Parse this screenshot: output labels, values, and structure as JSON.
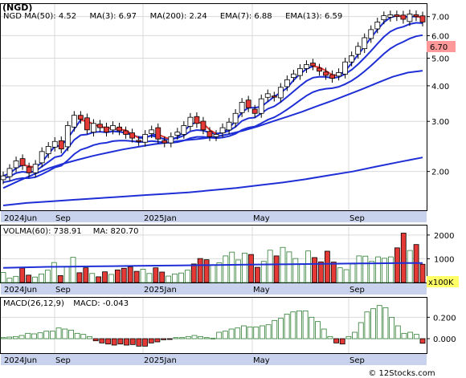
{
  "title": "(NGD)",
  "watermark": "© 12Stocks.com",
  "colors": {
    "bg": "#ffffff",
    "axis_band": "#c8d2ec",
    "grid": "#d9d9d9",
    "ma_line": "#1f2fd6",
    "up": "#2e7d32",
    "down": "#e53935",
    "last_price_box": "#ff9999"
  },
  "price_panel": {
    "legend": [
      {
        "label": "NGD",
        "value": ""
      },
      {
        "label": "MA(50)",
        "value": "4.52"
      },
      {
        "label": "MA(3)",
        "value": "6.97"
      },
      {
        "label": "MA(200)",
        "value": "2.24"
      },
      {
        "label": "EMA(7)",
        "value": "6.88"
      },
      {
        "label": "EMA(13)",
        "value": "6.59"
      }
    ],
    "last_price": "6.70",
    "y_ticks": [
      "7.00",
      "6.00",
      "5.00",
      "4.00",
      "3.00",
      "2.00"
    ],
    "x_ticks": [
      "2024Jun",
      "Sep",
      "2025Jan",
      "May",
      "Sep"
    ]
  },
  "volume_panel": {
    "legend": [
      {
        "label": "VOLMA(60)",
        "value": "738.91"
      },
      {
        "label": "MA",
        "value": "820.70"
      }
    ],
    "y_ticks": [
      "2000",
      "1000"
    ],
    "unit_label": "x100K",
    "x_ticks": [
      "2024Jun",
      "Sep",
      "2025Jan",
      "May",
      "Sep"
    ]
  },
  "macd_panel": {
    "legend": [
      {
        "label": "MACD(26,12,9)",
        "value": ""
      },
      {
        "label": "MACD",
        "value": "-0.043"
      }
    ],
    "y_ticks": [
      "0.200",
      "0.000"
    ],
    "x_ticks": [
      "2024Jun",
      "Sep",
      "2025Jan",
      "May",
      "Sep"
    ]
  },
  "chart_data": [
    {
      "type": "candlestick",
      "scale": "log",
      "ylim": [
        1.5,
        7.6
      ],
      "x_ticks": [
        "2024Jun",
        "Sep",
        "2025Jan",
        "May",
        "Sep"
      ],
      "y_ticks": [
        7,
        6,
        5,
        4,
        3,
        2
      ],
      "closes": [
        1.93,
        2.05,
        2.18,
        2.1,
        1.98,
        2.12,
        2.35,
        2.45,
        2.55,
        2.4,
        2.9,
        3.15,
        3.05,
        2.8,
        2.95,
        2.85,
        2.75,
        2.9,
        2.78,
        2.7,
        2.62,
        2.55,
        2.7,
        2.8,
        2.6,
        2.52,
        2.65,
        2.75,
        2.9,
        3.1,
        2.95,
        2.8,
        2.65,
        2.7,
        2.85,
        2.98,
        3.2,
        3.5,
        3.35,
        3.2,
        3.6,
        3.75,
        3.65,
        3.95,
        4.2,
        4.4,
        4.6,
        4.75,
        4.7,
        4.5,
        4.35,
        4.25,
        4.45,
        4.85,
        5.1,
        5.5,
        5.9,
        6.3,
        6.7,
        7.05,
        7.1,
        7.0,
        6.85,
        7.15,
        7.0,
        6.7
      ],
      "series": [
        {
          "name": "MA(3)",
          "last": 6.97
        },
        {
          "name": "EMA(7)",
          "last": 6.88
        },
        {
          "name": "EMA(13)",
          "last": 6.59
        },
        {
          "name": "MA(50)",
          "last": 4.52
        },
        {
          "name": "MA(200)",
          "last": 2.24
        }
      ],
      "ma50": [
        1.75,
        1.85,
        1.95,
        2.05,
        2.13,
        2.2,
        2.27,
        2.33,
        2.39,
        2.44,
        2.49,
        2.53,
        2.57,
        2.6,
        2.64,
        2.7,
        2.78,
        2.88,
        3.0,
        3.12,
        3.25,
        3.4,
        3.55,
        3.72,
        3.9,
        4.1,
        4.3,
        4.45,
        4.52
      ],
      "ma200": [
        1.52,
        1.55,
        1.57,
        1.59,
        1.61,
        1.63,
        1.65,
        1.67,
        1.69,
        1.72,
        1.75,
        1.79,
        1.83,
        1.88,
        1.94,
        2.0,
        2.08,
        2.16,
        2.24
      ]
    },
    {
      "type": "bar",
      "name": "VOLMA(60)",
      "unit": "x100K",
      "ylim": [
        0,
        2300
      ],
      "y_ticks": [
        2000,
        1000
      ],
      "values": [
        420,
        180,
        260,
        610,
        310,
        230,
        360,
        520,
        840,
        290,
        680,
        1060,
        410,
        620,
        380,
        240,
        450,
        340,
        530,
        600,
        660,
        470,
        560,
        380,
        620,
        440,
        270,
        360,
        400,
        520,
        780,
        1010,
        960,
        740,
        830,
        1120,
        1280,
        950,
        1240,
        1180,
        640,
        890,
        1360,
        1120,
        1480,
        1290,
        1010,
        790,
        1330,
        1050,
        870,
        1320,
        860,
        620,
        540,
        780,
        1120,
        1110,
        890,
        1080,
        1020,
        1080,
        1460,
        2080,
        1350,
        1600,
        770
      ],
      "ma_line": [
        620,
        640,
        660,
        670,
        680,
        690,
        700,
        710,
        720,
        730,
        740,
        750,
        760,
        770,
        780,
        790,
        800,
        810,
        820,
        820.7
      ]
    },
    {
      "type": "bar",
      "name": "MACD(26,12,9)",
      "ylim": [
        -0.12,
        0.36
      ],
      "y_ticks": [
        0.2,
        0.0
      ],
      "values": [
        0.01,
        0.015,
        0.02,
        0.03,
        0.05,
        0.045,
        0.055,
        0.07,
        0.07,
        0.1,
        0.09,
        0.08,
        0.05,
        0.04,
        0.02,
        -0.02,
        -0.04,
        -0.05,
        -0.06,
        -0.05,
        -0.06,
        -0.055,
        -0.07,
        -0.07,
        -0.04,
        -0.03,
        -0.01,
        -0.005,
        0.01,
        0.01,
        0.02,
        0.03,
        0.02,
        0.01,
        0.005,
        0.06,
        0.07,
        0.09,
        0.1,
        0.12,
        0.11,
        0.11,
        0.12,
        0.13,
        0.17,
        0.19,
        0.23,
        0.25,
        0.26,
        0.26,
        0.2,
        0.16,
        0.09,
        0.02,
        -0.04,
        -0.05,
        0.02,
        0.06,
        0.15,
        0.25,
        0.28,
        0.31,
        0.29,
        0.2,
        0.12,
        0.05,
        0.06,
        0.04,
        -0.043
      ]
    }
  ]
}
